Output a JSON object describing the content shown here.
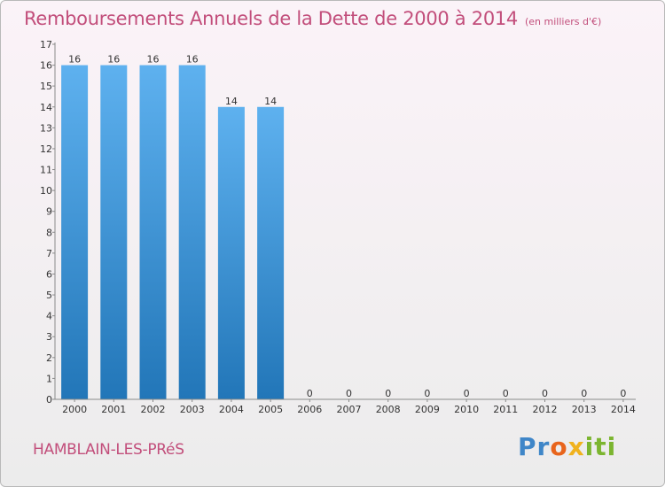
{
  "chart_data": {
    "type": "bar",
    "title": "Remboursements Annuels de la Dette de 2000 à 2014",
    "subtitle": "(en milliers d'€)",
    "categories": [
      "2000",
      "2001",
      "2002",
      "2003",
      "2004",
      "2005",
      "2006",
      "2007",
      "2008",
      "2009",
      "2010",
      "2011",
      "2012",
      "2013",
      "2014"
    ],
    "values": [
      16,
      16,
      16,
      16,
      14,
      14,
      0,
      0,
      0,
      0,
      0,
      0,
      0,
      0,
      0
    ],
    "ylim": [
      0,
      17
    ],
    "yticks": [
      0,
      1,
      2,
      3,
      4,
      5,
      6,
      7,
      8,
      9,
      10,
      11,
      12,
      13,
      14,
      15,
      16,
      17
    ],
    "grid": false,
    "legend": "none",
    "bar_color": "#3d93d6"
  },
  "footer": {
    "commune": "HAMBLAIN-LES-PRéS",
    "brand": "Proxiti",
    "brand_colors": [
      "#3f86c8",
      "#e8641c",
      "#f0b21d",
      "#7cb530"
    ]
  }
}
